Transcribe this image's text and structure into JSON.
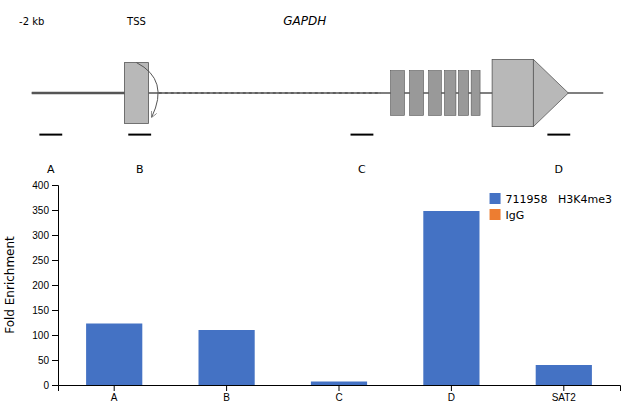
{
  "chart_data": {
    "type": "bar",
    "categories": [
      "A",
      "B",
      "C",
      "D",
      "SAT2"
    ],
    "series": [
      {
        "name": "711958   H3K4me3",
        "color": "#4472C4",
        "values": [
          123,
          110,
          7,
          348,
          40
        ]
      },
      {
        "name": "IgG",
        "color": "#ED7D31",
        "values": [
          null,
          null,
          null,
          null,
          null
        ]
      }
    ],
    "ylabel": "Fold Enrichment",
    "ylim": [
      0,
      400
    ],
    "yticks": [
      0,
      50,
      100,
      150,
      200,
      250,
      300,
      350,
      400
    ],
    "legend": "upper right",
    "grid": false,
    "annotations": [
      "GAPDH",
      "TSS",
      "-2 kb",
      "A",
      "B",
      "C",
      "D"
    ]
  }
}
